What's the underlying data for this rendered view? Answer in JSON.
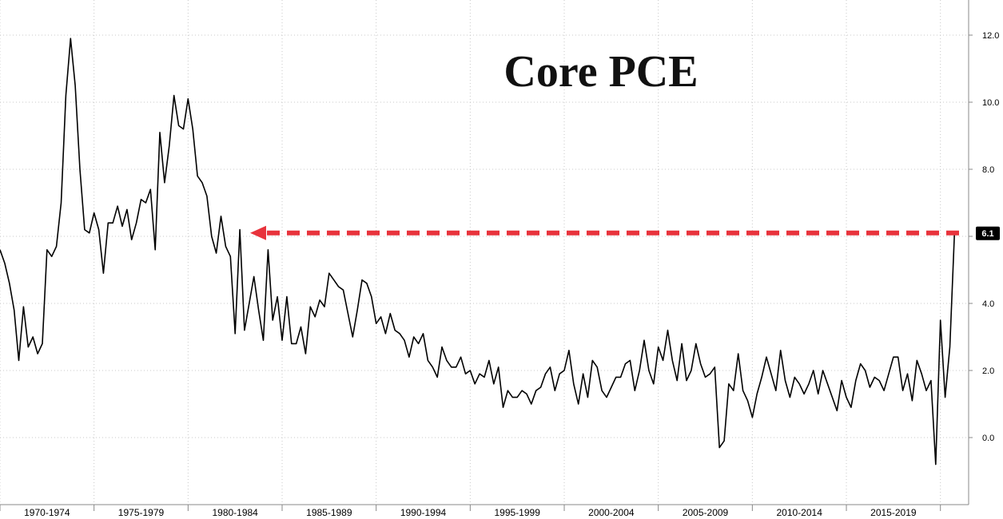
{
  "chart_data": {
    "type": "line",
    "title": "Core PCE",
    "xlabel": "",
    "ylabel": "",
    "ylim": [
      -2,
      13
    ],
    "xlim": [
      1970,
      2021.5
    ],
    "y_ticks": [
      0,
      2,
      4,
      6,
      8,
      10,
      12
    ],
    "y_tick_labels": [
      "0.0",
      "2.0",
      "4.0",
      "6.0",
      "8.0",
      "10.0",
      "12.0"
    ],
    "x_period_labels": [
      "1970-1974",
      "1975-1979",
      "1980-1984",
      "1985-1989",
      "1990-1994",
      "1995-1999",
      "2000-2004",
      "2005-2009",
      "2010-2014",
      "2015-2019"
    ],
    "grid": true,
    "last_value": 6.1,
    "last_value_label": "6.1",
    "annotation": "dashed arrow at the latest reading (6.1) pointing back to the last comparable level",
    "series": [
      {
        "values": [
          [
            1970.0,
            5.6
          ],
          [
            1970.25,
            5.2
          ],
          [
            1970.5,
            4.6
          ],
          [
            1970.75,
            3.8
          ],
          [
            1971.0,
            2.3
          ],
          [
            1971.25,
            3.9
          ],
          [
            1971.5,
            2.7
          ],
          [
            1971.75,
            3.0
          ],
          [
            1972.0,
            2.5
          ],
          [
            1972.25,
            2.8
          ],
          [
            1972.5,
            5.6
          ],
          [
            1972.75,
            5.4
          ],
          [
            1973.0,
            5.7
          ],
          [
            1973.25,
            7.0
          ],
          [
            1973.5,
            10.2
          ],
          [
            1973.75,
            11.9
          ],
          [
            1974.0,
            10.5
          ],
          [
            1974.25,
            8.0
          ],
          [
            1974.5,
            6.2
          ],
          [
            1974.75,
            6.1
          ],
          [
            1975.0,
            6.7
          ],
          [
            1975.25,
            6.2
          ],
          [
            1975.5,
            4.9
          ],
          [
            1975.75,
            6.4
          ],
          [
            1976.0,
            6.4
          ],
          [
            1976.25,
            6.9
          ],
          [
            1976.5,
            6.3
          ],
          [
            1976.75,
            6.8
          ],
          [
            1977.0,
            5.9
          ],
          [
            1977.25,
            6.4
          ],
          [
            1977.5,
            7.1
          ],
          [
            1977.75,
            7.0
          ],
          [
            1978.0,
            7.4
          ],
          [
            1978.25,
            5.6
          ],
          [
            1978.5,
            9.1
          ],
          [
            1978.75,
            7.6
          ],
          [
            1979.0,
            8.7
          ],
          [
            1979.25,
            10.2
          ],
          [
            1979.5,
            9.3
          ],
          [
            1979.75,
            9.2
          ],
          [
            1980.0,
            10.1
          ],
          [
            1980.25,
            9.2
          ],
          [
            1980.5,
            7.8
          ],
          [
            1980.75,
            7.6
          ],
          [
            1981.0,
            7.2
          ],
          [
            1981.25,
            6.0
          ],
          [
            1981.5,
            5.5
          ],
          [
            1981.75,
            6.6
          ],
          [
            1982.0,
            5.7
          ],
          [
            1982.25,
            5.4
          ],
          [
            1982.5,
            3.1
          ],
          [
            1982.75,
            6.2
          ],
          [
            1983.0,
            3.2
          ],
          [
            1983.25,
            4.0
          ],
          [
            1983.5,
            4.8
          ],
          [
            1983.75,
            3.8
          ],
          [
            1984.0,
            2.9
          ],
          [
            1984.25,
            5.6
          ],
          [
            1984.5,
            3.5
          ],
          [
            1984.75,
            4.2
          ],
          [
            1985.0,
            2.9
          ],
          [
            1985.25,
            4.2
          ],
          [
            1985.5,
            2.8
          ],
          [
            1985.75,
            2.8
          ],
          [
            1986.0,
            3.3
          ],
          [
            1986.25,
            2.5
          ],
          [
            1986.5,
            3.9
          ],
          [
            1986.75,
            3.6
          ],
          [
            1987.0,
            4.1
          ],
          [
            1987.25,
            3.9
          ],
          [
            1987.5,
            4.9
          ],
          [
            1987.75,
            4.7
          ],
          [
            1988.0,
            4.5
          ],
          [
            1988.25,
            4.4
          ],
          [
            1988.5,
            3.7
          ],
          [
            1988.75,
            3.0
          ],
          [
            1989.0,
            3.8
          ],
          [
            1989.25,
            4.7
          ],
          [
            1989.5,
            4.6
          ],
          [
            1989.75,
            4.2
          ],
          [
            1990.0,
            3.4
          ],
          [
            1990.25,
            3.6
          ],
          [
            1990.5,
            3.1
          ],
          [
            1990.75,
            3.7
          ],
          [
            1991.0,
            3.2
          ],
          [
            1991.25,
            3.1
          ],
          [
            1991.5,
            2.9
          ],
          [
            1991.75,
            2.4
          ],
          [
            1992.0,
            3.0
          ],
          [
            1992.25,
            2.8
          ],
          [
            1992.5,
            3.1
          ],
          [
            1992.75,
            2.3
          ],
          [
            1993.0,
            2.1
          ],
          [
            1993.25,
            1.8
          ],
          [
            1993.5,
            2.7
          ],
          [
            1993.75,
            2.3
          ],
          [
            1994.0,
            2.1
          ],
          [
            1994.25,
            2.1
          ],
          [
            1994.5,
            2.4
          ],
          [
            1994.75,
            1.9
          ],
          [
            1995.0,
            2.0
          ],
          [
            1995.25,
            1.6
          ],
          [
            1995.5,
            1.9
          ],
          [
            1995.75,
            1.8
          ],
          [
            1996.0,
            2.3
          ],
          [
            1996.25,
            1.6
          ],
          [
            1996.5,
            2.1
          ],
          [
            1996.75,
            0.9
          ],
          [
            1997.0,
            1.4
          ],
          [
            1997.25,
            1.2
          ],
          [
            1997.5,
            1.2
          ],
          [
            1997.75,
            1.4
          ],
          [
            1998.0,
            1.3
          ],
          [
            1998.25,
            1.0
          ],
          [
            1998.5,
            1.4
          ],
          [
            1998.75,
            1.5
          ],
          [
            1999.0,
            1.9
          ],
          [
            1999.25,
            2.1
          ],
          [
            1999.5,
            1.4
          ],
          [
            1999.75,
            1.9
          ],
          [
            2000.0,
            2.0
          ],
          [
            2000.25,
            2.6
          ],
          [
            2000.5,
            1.6
          ],
          [
            2000.75,
            1.0
          ],
          [
            2001.0,
            1.9
          ],
          [
            2001.25,
            1.2
          ],
          [
            2001.5,
            2.3
          ],
          [
            2001.75,
            2.1
          ],
          [
            2002.0,
            1.4
          ],
          [
            2002.25,
            1.2
          ],
          [
            2002.5,
            1.5
          ],
          [
            2002.75,
            1.8
          ],
          [
            2003.0,
            1.8
          ],
          [
            2003.25,
            2.2
          ],
          [
            2003.5,
            2.3
          ],
          [
            2003.75,
            1.4
          ],
          [
            2004.0,
            2.0
          ],
          [
            2004.25,
            2.9
          ],
          [
            2004.5,
            2.0
          ],
          [
            2004.75,
            1.6
          ],
          [
            2005.0,
            2.7
          ],
          [
            2005.25,
            2.3
          ],
          [
            2005.5,
            3.2
          ],
          [
            2005.75,
            2.3
          ],
          [
            2006.0,
            1.7
          ],
          [
            2006.25,
            2.8
          ],
          [
            2006.5,
            1.7
          ],
          [
            2006.75,
            2.0
          ],
          [
            2007.0,
            2.8
          ],
          [
            2007.25,
            2.2
          ],
          [
            2007.5,
            1.8
          ],
          [
            2007.75,
            1.9
          ],
          [
            2008.0,
            2.1
          ],
          [
            2008.25,
            -0.3
          ],
          [
            2008.5,
            -0.1
          ],
          [
            2008.75,
            1.6
          ],
          [
            2009.0,
            1.4
          ],
          [
            2009.25,
            2.5
          ],
          [
            2009.5,
            1.4
          ],
          [
            2009.75,
            1.1
          ],
          [
            2010.0,
            0.6
          ],
          [
            2010.25,
            1.3
          ],
          [
            2010.5,
            1.8
          ],
          [
            2010.75,
            2.4
          ],
          [
            2011.0,
            1.9
          ],
          [
            2011.25,
            1.4
          ],
          [
            2011.5,
            2.6
          ],
          [
            2011.75,
            1.7
          ],
          [
            2012.0,
            1.2
          ],
          [
            2012.25,
            1.8
          ],
          [
            2012.5,
            1.6
          ],
          [
            2012.75,
            1.3
          ],
          [
            2013.0,
            1.6
          ],
          [
            2013.25,
            2.0
          ],
          [
            2013.5,
            1.3
          ],
          [
            2013.75,
            2.0
          ],
          [
            2014.0,
            1.6
          ],
          [
            2014.25,
            1.2
          ],
          [
            2014.5,
            0.8
          ],
          [
            2014.75,
            1.7
          ],
          [
            2015.0,
            1.2
          ],
          [
            2015.25,
            0.9
          ],
          [
            2015.5,
            1.7
          ],
          [
            2015.75,
            2.2
          ],
          [
            2016.0,
            2.0
          ],
          [
            2016.25,
            1.5
          ],
          [
            2016.5,
            1.8
          ],
          [
            2016.75,
            1.7
          ],
          [
            2017.0,
            1.4
          ],
          [
            2017.25,
            1.9
          ],
          [
            2017.5,
            2.4
          ],
          [
            2017.75,
            2.4
          ],
          [
            2018.0,
            1.4
          ],
          [
            2018.25,
            1.9
          ],
          [
            2018.5,
            1.1
          ],
          [
            2018.75,
            2.3
          ],
          [
            2019.0,
            1.9
          ],
          [
            2019.25,
            1.4
          ],
          [
            2019.5,
            1.7
          ],
          [
            2019.75,
            -0.8
          ],
          [
            2020.0,
            3.5
          ],
          [
            2020.25,
            1.2
          ],
          [
            2020.5,
            2.7
          ],
          [
            2020.75,
            6.1
          ]
        ]
      }
    ]
  },
  "colors": {
    "line": "#000000",
    "arrow": "#e8333c",
    "grid": "#c8c8c8",
    "axis": "#888888",
    "label_box": "#000000"
  }
}
